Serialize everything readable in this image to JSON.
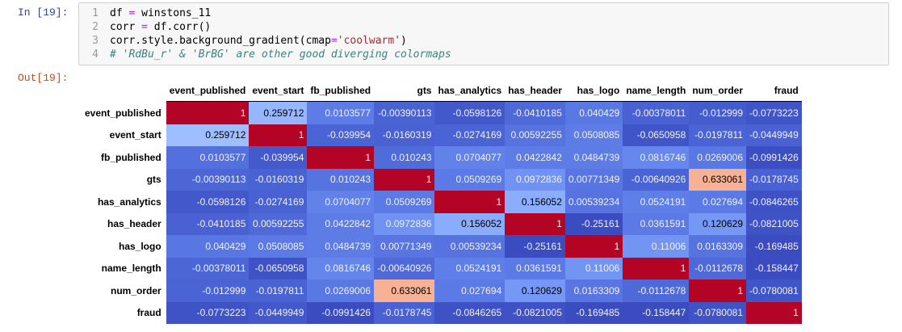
{
  "input_prompt": "In [19]:",
  "output_prompt": "Out[19]:",
  "code": [
    {
      "n": "1",
      "parts": [
        {
          "t": "txt",
          "v": "df "
        },
        {
          "t": "op",
          "v": "="
        },
        {
          "t": "txt",
          "v": " winstons_11"
        }
      ]
    },
    {
      "n": "2",
      "parts": [
        {
          "t": "txt",
          "v": "corr "
        },
        {
          "t": "op",
          "v": "="
        },
        {
          "t": "txt",
          "v": " df.corr()"
        }
      ]
    },
    {
      "n": "3",
      "parts": [
        {
          "t": "txt",
          "v": "corr.style.background_gradient(cmap"
        },
        {
          "t": "op",
          "v": "="
        },
        {
          "t": "str",
          "v": "'coolwarm'"
        },
        {
          "t": "txt",
          "v": ")"
        }
      ]
    },
    {
      "n": "4",
      "parts": [
        {
          "t": "cmt",
          "v": "# 'RdBu_r' & 'BrBG' are other good diverging colormaps"
        }
      ]
    }
  ],
  "table": {
    "columns": [
      "event_published",
      "event_start",
      "fb_published",
      "gts",
      "has_analytics",
      "has_header",
      "has_logo",
      "name_length",
      "num_order",
      "fraud"
    ],
    "rows": [
      {
        "label": "event_published",
        "values": [
          "1",
          "0.259712",
          "0.0103577",
          "-0.00390113",
          "-0.0598126",
          "-0.0410185",
          "0.040429",
          "-0.00378011",
          "-0.012999",
          "-0.0773223"
        ],
        "colors": [
          "#b40426",
          "#96b7ff",
          "#5d7ce6",
          "#4a63d3",
          "#4358cb",
          "#4f69d9",
          "#5a78e4",
          "#4961d2",
          "#455cce",
          "#4055c8"
        ]
      },
      {
        "label": "event_start",
        "values": [
          "0.259712",
          "1",
          "-0.039954",
          "-0.0160319",
          "-0.0274169",
          "0.00592255",
          "0.0508085",
          "-0.0650958",
          "-0.0197811",
          "-0.0449949"
        ],
        "colors": [
          "#9ebeff",
          "#b40426",
          "#4b64d5",
          "#4961d2",
          "#4b64d5",
          "#5673e0",
          "#5d7ce6",
          "#4055c8",
          "#4b64d5",
          "#4961d2"
        ]
      },
      {
        "label": "fb_published",
        "values": [
          "0.0103577",
          "-0.039954",
          "1",
          "0.010243",
          "0.0704077",
          "0.0422842",
          "0.0484739",
          "0.0816746",
          "0.0269006",
          "-0.0991426"
        ],
        "colors": [
          "#5470de",
          "#445acc",
          "#b40426",
          "#506bda",
          "#6282ea",
          "#5d7ce6",
          "#5d7ce6",
          "#6687ed",
          "#5a78e4",
          "#3c4ec2"
        ]
      },
      {
        "label": "gts",
        "values": [
          "-0.00390113",
          "-0.0160319",
          "0.010243",
          "1",
          "0.0509269",
          "0.0972836",
          "0.00771349",
          "-0.00640926",
          "0.633061",
          "-0.0178745"
        ],
        "colors": [
          "#4c66d6",
          "#4a63d3",
          "#5673e0",
          "#b40426",
          "#5b7ae5",
          "#6f92f3",
          "#5875e1",
          "#4b64d5",
          "#f7b194",
          "#4961d2"
        ]
      },
      {
        "label": "has_analytics",
        "values": [
          "-0.0598126",
          "-0.0274169",
          "0.0704077",
          "0.0509269",
          "1",
          "0.156052",
          "0.00539234",
          "0.0524191",
          "0.027694",
          "-0.0846265"
        ],
        "colors": [
          "#4358cb",
          "#4961d2",
          "#6282ea",
          "#5b7ae5",
          "#b40426",
          "#8badfd",
          "#5673e0",
          "#5f7fe8",
          "#5b7ae5",
          "#3e51c5"
        ]
      },
      {
        "label": "has_header",
        "values": [
          "-0.0410185",
          "0.00592255",
          "0.0422842",
          "0.0972836",
          "0.156052",
          "1",
          "-0.25161",
          "0.0361591",
          "0.120629",
          "-0.0821005"
        ],
        "colors": [
          "#4961d2",
          "#4f69d9",
          "#5d7ce6",
          "#6f92f3",
          "#89acfd",
          "#b40426",
          "#3b4cc0",
          "#5b7ae5",
          "#7597f6",
          "#3f53c6"
        ]
      },
      {
        "label": "has_logo",
        "values": [
          "0.040429",
          "0.0508085",
          "0.0484739",
          "0.00771349",
          "0.00539234",
          "-0.25161",
          "1",
          "0.11006",
          "0.0163309",
          "-0.169485"
        ],
        "colors": [
          "#5977e3",
          "#5b7ae5",
          "#5d7ce6",
          "#5875e1",
          "#5673e0",
          "#3b4cc0",
          "#b40426",
          "#7295f4",
          "#5673e0",
          "#3b4cc0"
        ]
      },
      {
        "label": "name_length",
        "values": [
          "-0.00378011",
          "-0.0650958",
          "0.0816746",
          "-0.00640926",
          "0.0524191",
          "0.0361591",
          "0.11006",
          "1",
          "-0.0112678",
          "-0.158447"
        ],
        "colors": [
          "#4c66d6",
          "#3f53c6",
          "#6485ec",
          "#4f69d9",
          "#5f7fe8",
          "#5b7ae5",
          "#7295f4",
          "#b40426",
          "#4f69d9",
          "#3b4cc0"
        ]
      },
      {
        "label": "num_order",
        "values": [
          "-0.012999",
          "-0.0197811",
          "0.0269006",
          "0.633061",
          "0.027694",
          "0.120629",
          "0.0163309",
          "-0.0112678",
          "1",
          "-0.0780081"
        ],
        "colors": [
          "#4b64d5",
          "#4a63d3",
          "#5a78e4",
          "#f7b194",
          "#5b7ae5",
          "#7597f6",
          "#5875e1",
          "#4f69d9",
          "#b40426",
          "#4055c8"
        ]
      },
      {
        "label": "fraud",
        "values": [
          "-0.0773223",
          "-0.0449949",
          "-0.0991426",
          "-0.0178745",
          "-0.0846265",
          "-0.0821005",
          "-0.169485",
          "-0.158447",
          "-0.0780081",
          "1"
        ],
        "colors": [
          "#3f53c6",
          "#4358cb",
          "#3b4cc0",
          "#4961d2",
          "#3e51c5",
          "#3e51c5",
          "#3b4cc0",
          "#3b4cc0",
          "#3f53c6",
          "#b40426"
        ]
      }
    ]
  }
}
